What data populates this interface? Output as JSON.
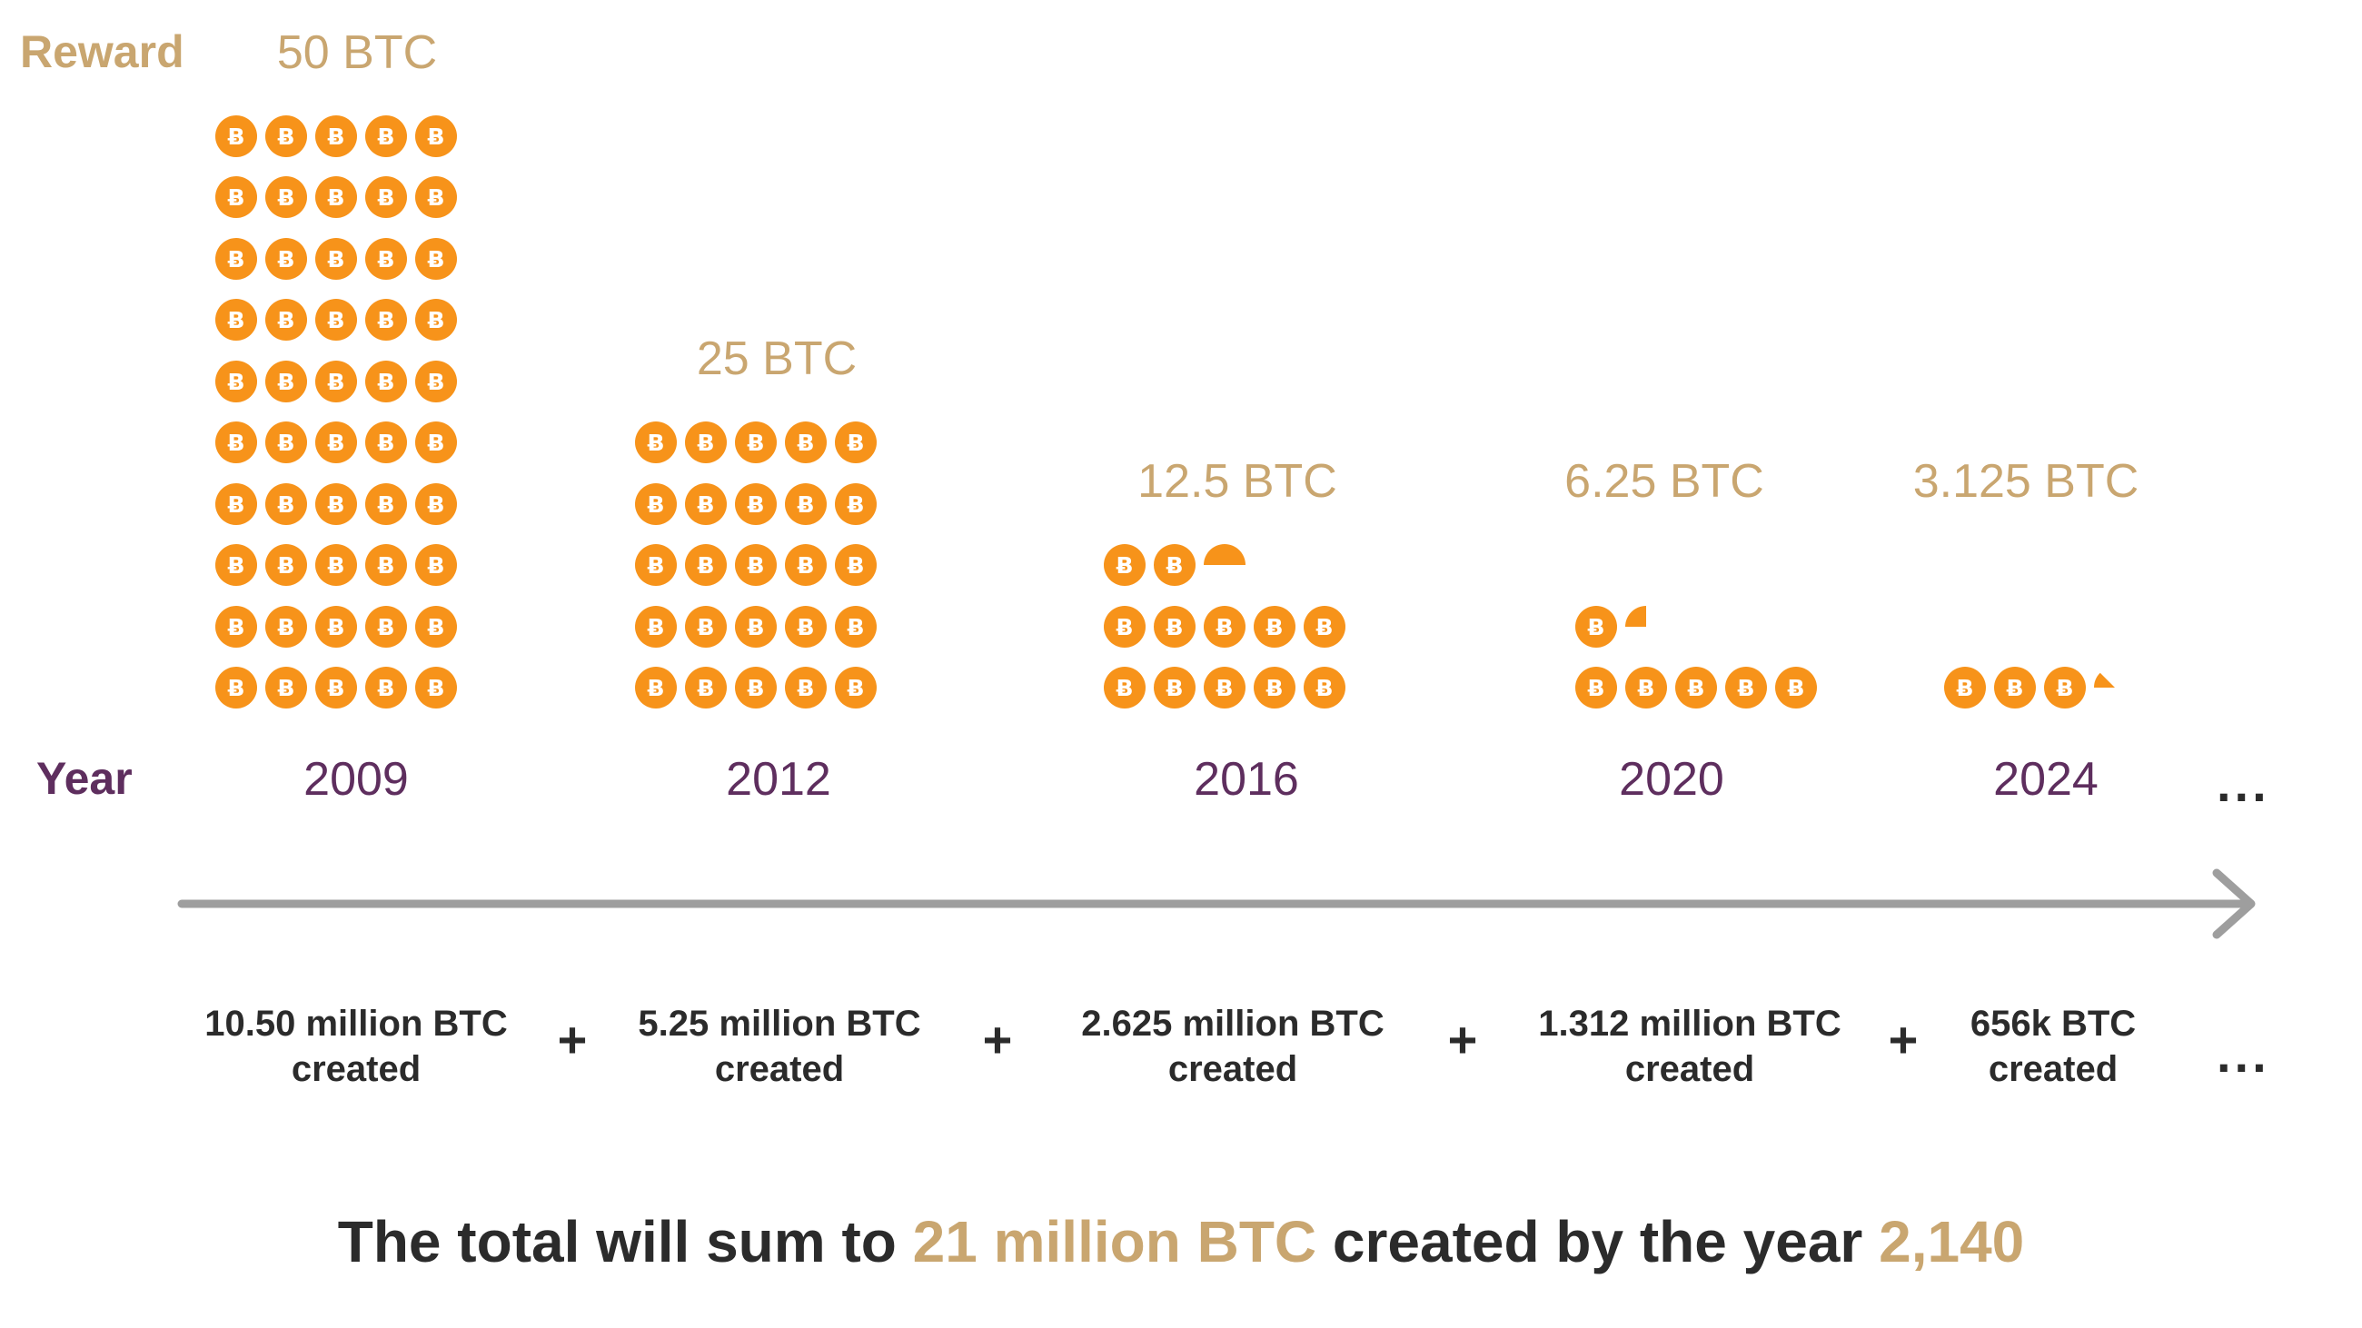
{
  "labels": {
    "reward": "Reward",
    "year": "Year"
  },
  "eras": [
    {
      "reward": "50 BTC",
      "year": "2009",
      "created_line1": "10.50 million BTC",
      "created_line2": "created",
      "coins": 50
    },
    {
      "reward": "25 BTC",
      "year": "2012",
      "created_line1": "5.25 million BTC",
      "created_line2": "created",
      "coins": 25
    },
    {
      "reward": "12.5 BTC",
      "year": "2016",
      "created_line1": "2.625 million BTC",
      "created_line2": "created",
      "coins": 12.5
    },
    {
      "reward": "6.25 BTC",
      "year": "2020",
      "created_line1": "1.312 million BTC",
      "created_line2": "created",
      "coins": 6.25
    },
    {
      "reward": "3.125 BTC",
      "year": "2024",
      "created_line1": "656k BTC",
      "created_line2": "created",
      "coins": 3.125
    }
  ],
  "plus": "+",
  "ellipsis": "...",
  "summary": {
    "part1": "The total will sum to ",
    "highlight1": "21 million BTC",
    "part2": " created by the year ",
    "highlight2": "2,140"
  },
  "colors": {
    "gold": "#C9A670",
    "purple": "#5E2E5E",
    "coin": "#F7931A",
    "arrow": "#9E9E9E",
    "text": "#2b2b2b"
  },
  "icons": {
    "coin": "bitcoin-coin-icon",
    "arrow": "timeline-arrow-icon"
  }
}
